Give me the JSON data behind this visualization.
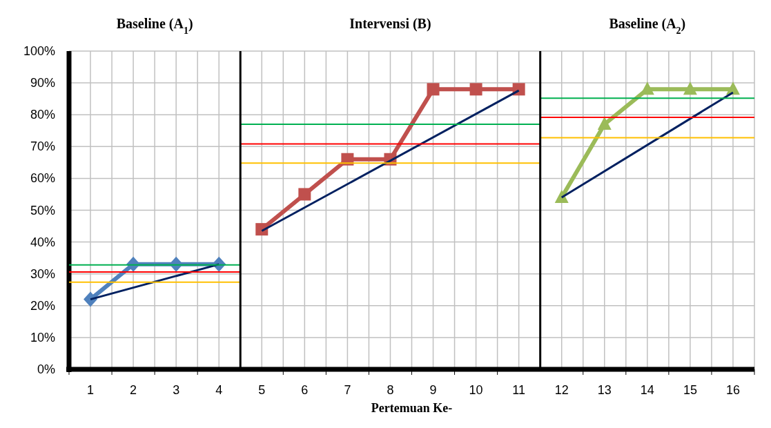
{
  "chart_data": {
    "type": "line",
    "xlabel": "Pertemuan Ke-",
    "annotations": [
      "Baseline (A$_{1}$)",
      "Intervensi (B)",
      "Baseline (A$_{2}$)"
    ],
    "xlim": [
      0.5,
      16.5
    ],
    "xticks": [
      {
        "value": 0.5,
        "label": null
      },
      1,
      {
        "value": 1.5,
        "label": null
      },
      2,
      {
        "value": 2.5,
        "label": null
      },
      3,
      {
        "value": 3.5,
        "label": null
      },
      4,
      5,
      {
        "value": 5.5,
        "label": null
      },
      6,
      {
        "value": 6.5,
        "label": null
      },
      7,
      {
        "value": 7.5,
        "label": null
      },
      8,
      {
        "value": 8.5,
        "label": null
      },
      9,
      {
        "value": 9.5,
        "label": null
      },
      10,
      {
        "value": 10.5,
        "label": null
      },
      11,
      12,
      {
        "value": 12.5,
        "label": null
      },
      13,
      {
        "value": 13.5,
        "label": null
      },
      14,
      {
        "value": 14.5,
        "label": null
      },
      15,
      {
        "value": 15.5,
        "label": null
      },
      16,
      {
        "value": 16.5,
        "label": null
      }
    ],
    "ylim": [
      0,
      100
    ],
    "yticks": [
      {
        "value": 0,
        "label": "0%"
      },
      {
        "value": 10,
        "label": "10%"
      },
      {
        "value": 20,
        "label": "20%"
      },
      {
        "value": 30,
        "label": "30%"
      },
      {
        "value": 40,
        "label": "40%"
      },
      {
        "value": 50,
        "label": "50%"
      },
      {
        "value": 60,
        "label": "60%"
      },
      {
        "value": 70,
        "label": "70%"
      },
      {
        "value": 80,
        "label": "80%"
      },
      {
        "value": 90,
        "label": "90%"
      },
      {
        "value": 100,
        "label": "100%"
      }
    ],
    "grid": true,
    "ref_lines": [
      {
        "axis": "x",
        "value": 4.5,
        "color": "#000000"
      },
      {
        "axis": "x",
        "value": 11.5,
        "color": "#000000"
      }
    ],
    "series": [
      {
        "x": [
          1,
          2,
          3,
          4
        ],
        "values": [
          22,
          33,
          33,
          33
        ],
        "color": "#4f81bd",
        "marker": "diamond"
      },
      {
        "x": [
          5,
          6,
          7,
          8,
          9,
          10,
          11
        ],
        "values": [
          44,
          55,
          66,
          66,
          88,
          88,
          88
        ],
        "color": "#c0504d",
        "marker": "square"
      },
      {
        "x": [
          12,
          13,
          14,
          15,
          16
        ],
        "values": [
          54,
          77,
          88,
          88,
          88
        ],
        "color": "#9bbb59",
        "marker": "triangle"
      },
      {
        "x": [
          1,
          4
        ],
        "values": [
          22,
          33
        ],
        "color": "#002060",
        "marker": "none"
      },
      {
        "x": [
          5,
          11
        ],
        "values": [
          43.5,
          87.6
        ],
        "color": "#002060",
        "marker": "none"
      },
      {
        "x": [
          12,
          16
        ],
        "values": [
          54,
          87
        ],
        "color": "#002060",
        "marker": "none"
      },
      {
        "x": [
          0.5,
          4.5
        ],
        "values": [
          32.8,
          32.8
        ],
        "color": "#00b050",
        "marker": "none"
      },
      {
        "x": [
          0.5,
          4.5
        ],
        "values": [
          30.6,
          30.6
        ],
        "color": "#ff0000",
        "marker": "none"
      },
      {
        "x": [
          0.5,
          4.5
        ],
        "values": [
          27.4,
          27.4
        ],
        "color": "#ffc000",
        "marker": "none"
      },
      {
        "x": [
          4.5,
          11.5
        ],
        "values": [
          77,
          77
        ],
        "color": "#00b050",
        "marker": "none"
      },
      {
        "x": [
          4.5,
          11.5
        ],
        "values": [
          70.8,
          70.8
        ],
        "color": "#ff0000",
        "marker": "none"
      },
      {
        "x": [
          4.5,
          11.5
        ],
        "values": [
          64.8,
          64.8
        ],
        "color": "#ffc000",
        "marker": "none"
      },
      {
        "x": [
          11.5,
          16.5
        ],
        "values": [
          85.2,
          85.2
        ],
        "color": "#00b050",
        "marker": "none"
      },
      {
        "x": [
          11.5,
          16.5
        ],
        "values": [
          79.2,
          79.2
        ],
        "color": "#ff0000",
        "marker": "none"
      },
      {
        "x": [
          11.5,
          16.5
        ],
        "values": [
          72.8,
          72.8
        ],
        "color": "#ffc000",
        "marker": "none"
      }
    ]
  }
}
